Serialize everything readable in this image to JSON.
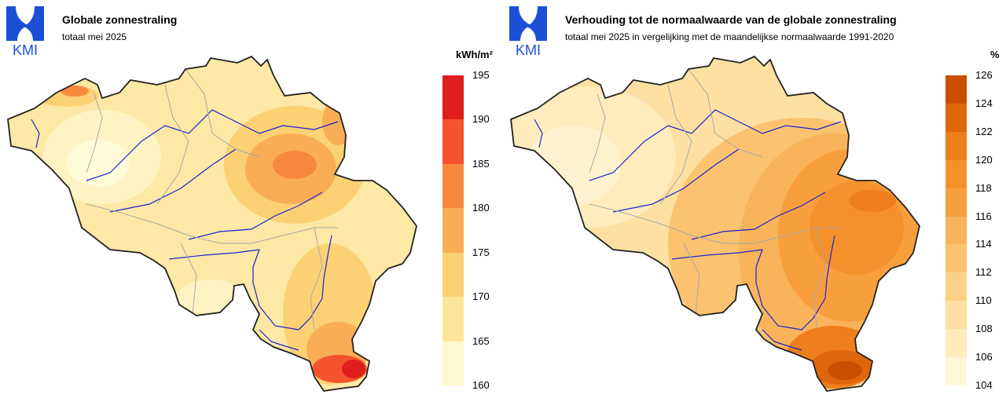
{
  "logo": {
    "text": "KMI",
    "color": "#1a4fd6"
  },
  "left": {
    "title": "Globale zonnestraling",
    "subtitle": "totaal mei 2025",
    "unit": "kWh/m²",
    "legend": {
      "ticks": [
        "195",
        "190",
        "185",
        "180",
        "175",
        "170",
        "165",
        "160"
      ],
      "colors": [
        "#e01e1e",
        "#f5532e",
        "#f7893f",
        "#f9ae55",
        "#fbd174",
        "#fde69b",
        "#fff7cd"
      ]
    }
  },
  "right": {
    "title": "Verhouding tot de normaalwaarde van de globale zonnestraling",
    "subtitle": "totaal mei 2025 in vergelijking met de maandelijkse normaalwaarde 1991-2020",
    "unit": "%",
    "legend": {
      "ticks": [
        "126",
        "124",
        "122",
        "120",
        "118",
        "116",
        "114",
        "112",
        "110",
        "108",
        "106",
        "104"
      ],
      "colors": [
        "#cc4f00",
        "#e0660c",
        "#ee7f1c",
        "#f5912c",
        "#f89f3d",
        "#f9b35a",
        "#fbc36f",
        "#fcd185",
        "#fde0a2",
        "#feecbd",
        "#fff6d6"
      ]
    }
  }
}
